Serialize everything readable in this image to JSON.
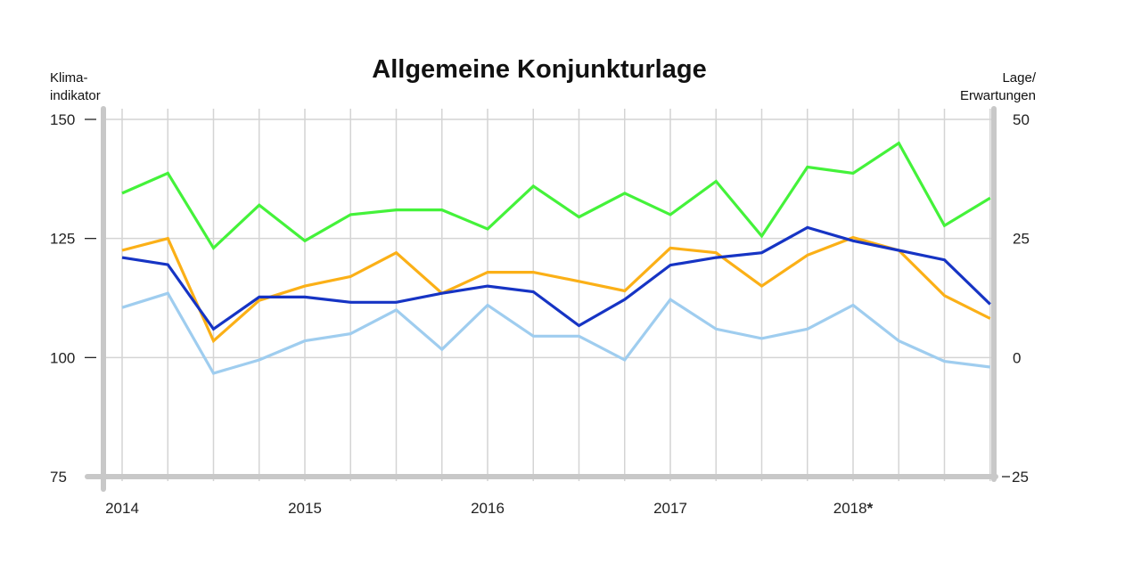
{
  "chart_data": {
    "type": "line",
    "title": "Allgemeine Konjunkturlage",
    "ylabel_left": [
      "Klima-",
      "indikator"
    ],
    "ylabel_right": [
      "Lage/",
      "Erwartungen"
    ],
    "left_axis": {
      "ylim": [
        75,
        150
      ],
      "ticks": [
        "150",
        "125",
        "100",
        "75"
      ]
    },
    "right_axis": {
      "ylim": [
        -25,
        50
      ],
      "ticks": [
        "50",
        "25",
        "0",
        "-25"
      ]
    },
    "x_labels": [
      {
        "label": "2014",
        "index": 0
      },
      {
        "label": "2015",
        "index": 4
      },
      {
        "label": "2016",
        "index": 8
      },
      {
        "label": "2017",
        "index": 12
      },
      {
        "label": "2018",
        "index": 16,
        "star": "*"
      }
    ],
    "grid": true,
    "colors": {
      "green": "#44f23a",
      "orange": "#fbb017",
      "darkblue": "#1634c4",
      "lightblue": "#9fcdef",
      "grid": "#d4d4d4",
      "axis": "#c8c8c8"
    },
    "series": [
      {
        "color_key": "green",
        "axis": "right",
        "values": [
          34.5,
          38.7,
          23,
          32,
          24.5,
          30,
          31,
          31,
          27,
          36,
          29.5,
          34.5,
          30,
          37,
          25.5,
          40,
          38.7,
          45,
          27.7,
          33.5
        ]
      },
      {
        "color_key": "orange",
        "axis": "right",
        "values": [
          22.5,
          25,
          3.5,
          12,
          15,
          17,
          22,
          13.5,
          17.9,
          17.9,
          16,
          14,
          23,
          22,
          15,
          21.5,
          25.2,
          22.5,
          13,
          8.2
        ]
      },
      {
        "color_key": "darkblue",
        "axis": "left",
        "values": [
          121,
          119.5,
          106,
          112.7,
          112.7,
          111.6,
          111.6,
          113.5,
          115,
          113.8,
          106.7,
          112.2,
          119.4,
          121,
          122,
          127.3,
          124.5,
          122.5,
          120.5,
          111.2
        ]
      },
      {
        "color_key": "lightblue",
        "axis": "left",
        "values": [
          110.5,
          113.5,
          96.7,
          99.5,
          103.5,
          105,
          110,
          101.7,
          111,
          104.5,
          104.5,
          99.5,
          112.2,
          106,
          104,
          106,
          111,
          103.5,
          99.2,
          98
        ]
      }
    ]
  }
}
